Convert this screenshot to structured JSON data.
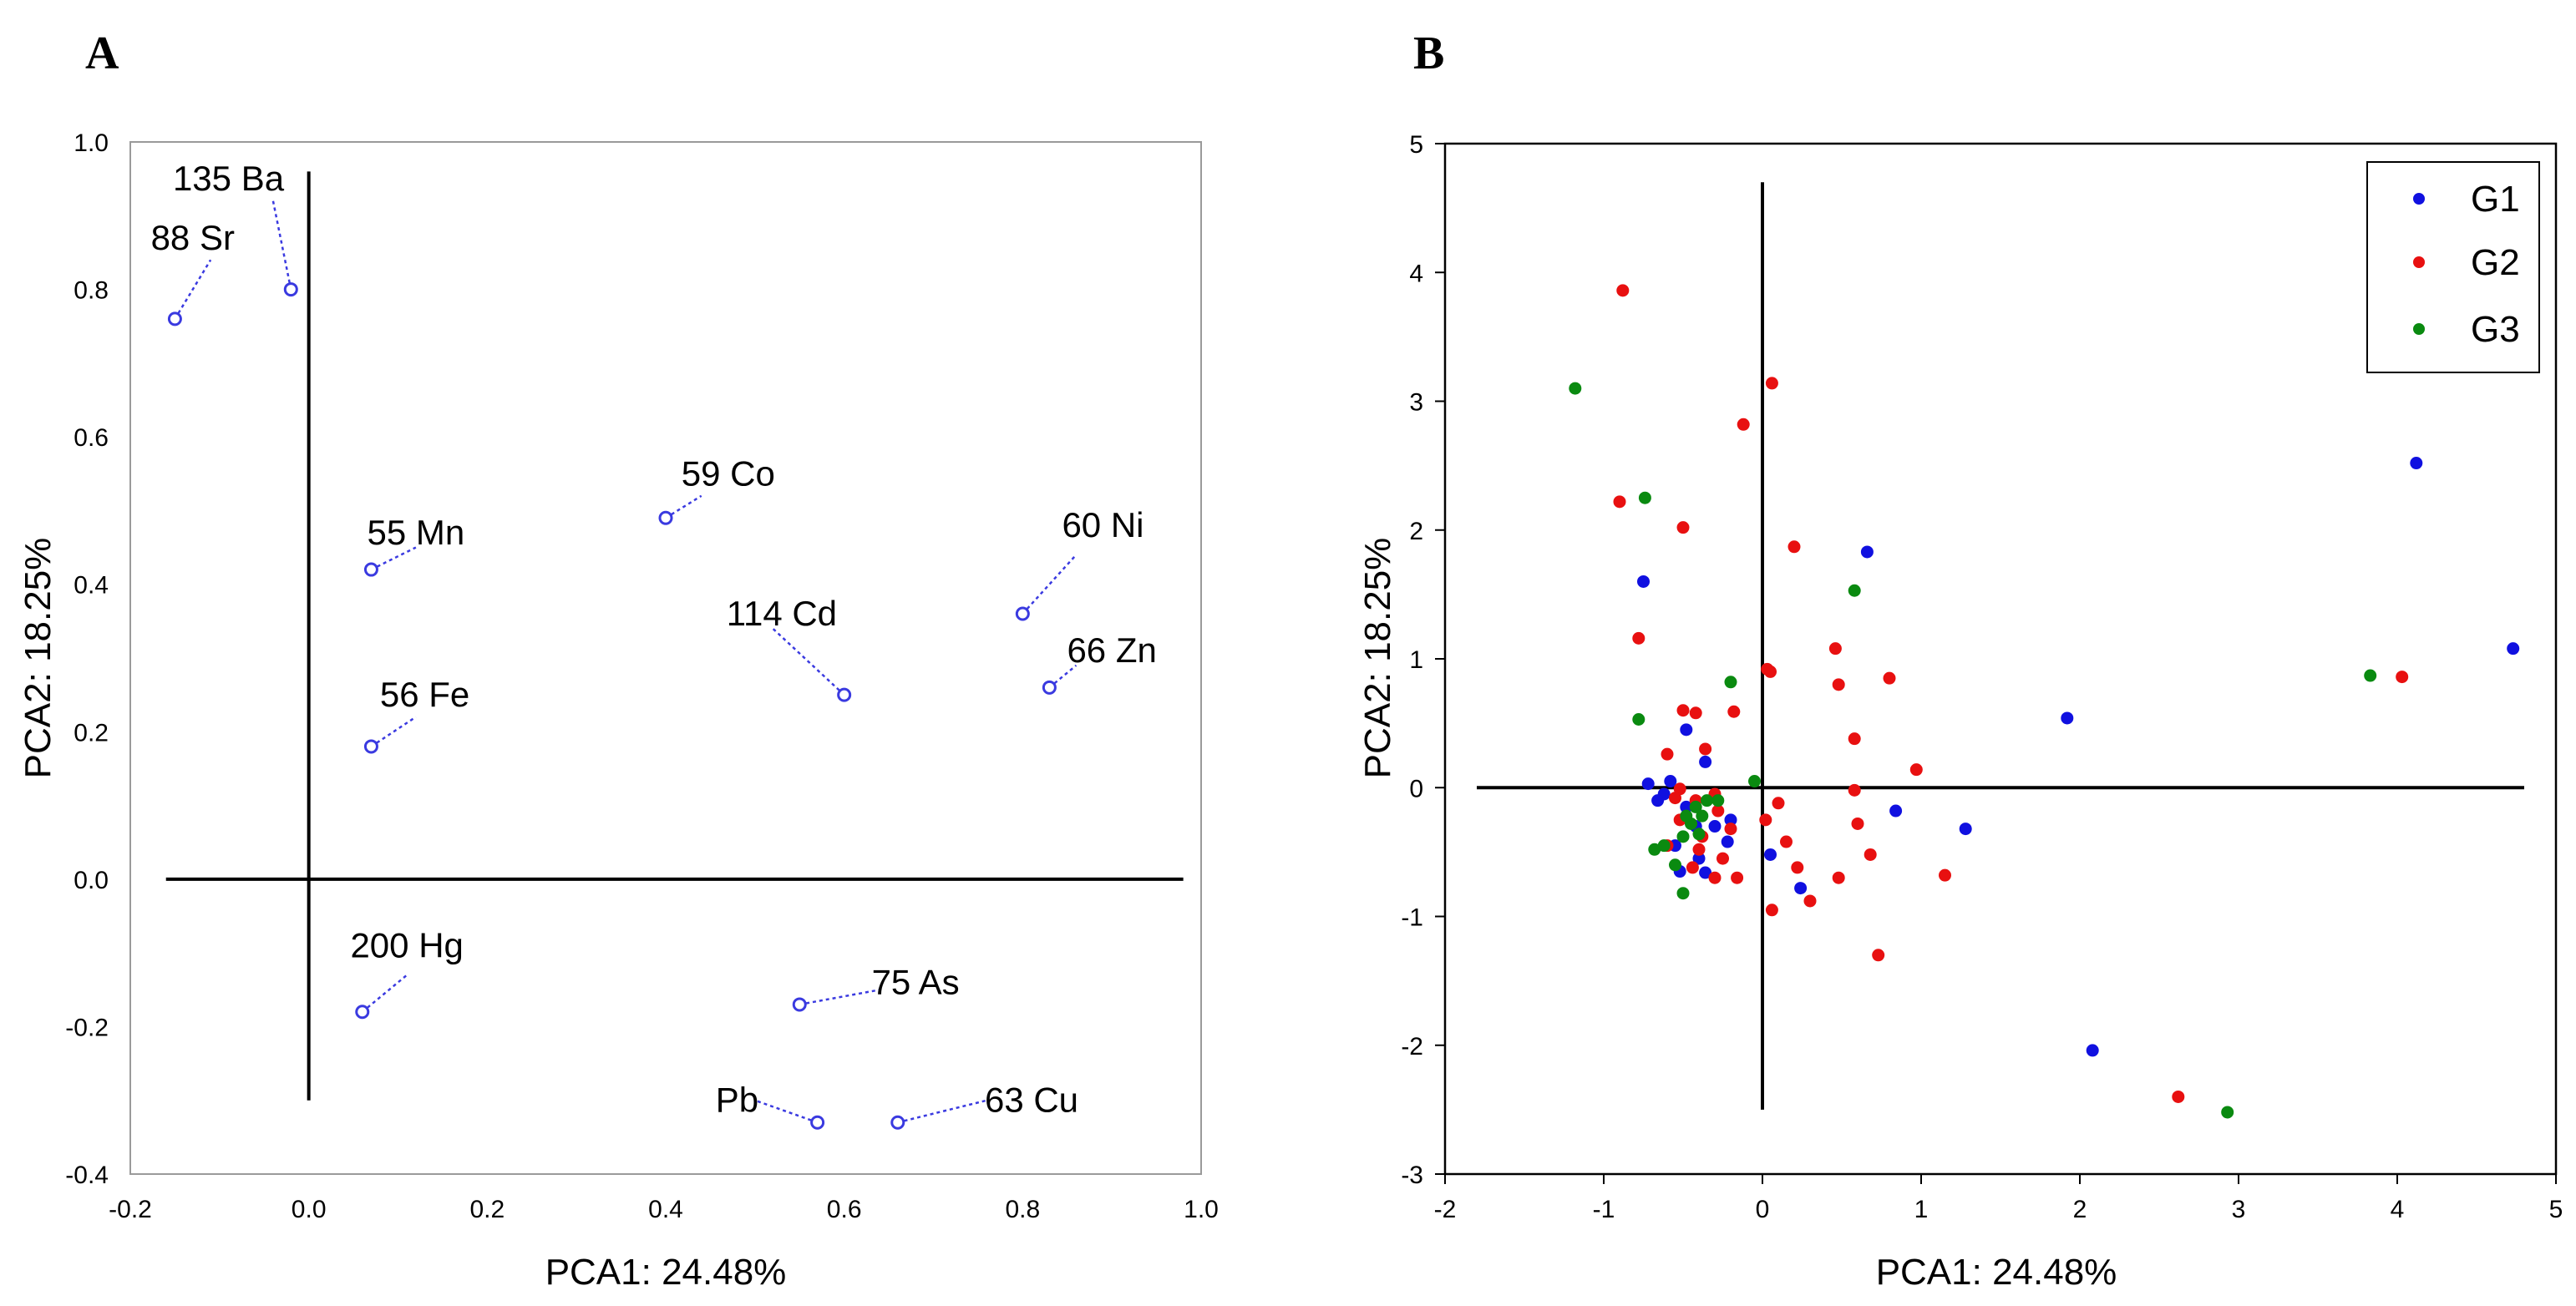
{
  "chart_data": [
    {
      "panel": "A",
      "type": "scatter",
      "title": "",
      "xlabel": "PCA1: 24.48%",
      "ylabel": "PCA2: 18.25%",
      "xlim": [
        -0.2,
        1.0
      ],
      "ylim": [
        -0.4,
        1.0
      ],
      "xticks": [
        "-0.2",
        "0.0",
        "0.2",
        "0.4",
        "0.6",
        "0.8",
        "1.0"
      ],
      "xtick_values": [
        -0.2,
        0.0,
        0.2,
        0.4,
        0.6,
        0.8,
        1.0
      ],
      "yticks": [
        "1.0",
        "0.8",
        "0.6",
        "0.4",
        "0.2",
        "0.0",
        "-0.2",
        "-0.4"
      ],
      "ytick_values": [
        1.0,
        0.8,
        0.6,
        0.4,
        0.2,
        0.0,
        -0.2,
        -0.4
      ],
      "point_color": "#3a3ae0",
      "points": [
        {
          "label": "135  Ba",
          "x": -0.02,
          "y": 0.8,
          "label_x": -0.09,
          "label_y": 0.95,
          "leader_x": -0.04,
          "leader_y": 0.92
        },
        {
          "label": "88  Sr",
          "x": -0.15,
          "y": 0.76,
          "label_x": -0.13,
          "label_y": 0.87,
          "leader_x": -0.11,
          "leader_y": 0.84
        },
        {
          "label": "59  Co",
          "x": 0.4,
          "y": 0.49,
          "label_x": 0.47,
          "label_y": 0.55,
          "leader_x": 0.44,
          "leader_y": 0.52
        },
        {
          "label": "55  Mn",
          "x": 0.07,
          "y": 0.42,
          "label_x": 0.12,
          "label_y": 0.47,
          "leader_x": 0.12,
          "leader_y": 0.45
        },
        {
          "label": "60  Ni",
          "x": 0.8,
          "y": 0.36,
          "label_x": 0.89,
          "label_y": 0.48,
          "leader_x": 0.86,
          "leader_y": 0.44
        },
        {
          "label": "114  Cd",
          "x": 0.6,
          "y": 0.25,
          "label_x": 0.53,
          "label_y": 0.36,
          "leader_x": 0.52,
          "leader_y": 0.34
        },
        {
          "label": "66  Zn",
          "x": 0.83,
          "y": 0.26,
          "label_x": 0.9,
          "label_y": 0.31,
          "leader_x": 0.86,
          "leader_y": 0.29
        },
        {
          "label": "56  Fe",
          "x": 0.07,
          "y": 0.18,
          "label_x": 0.13,
          "label_y": 0.25,
          "leader_x": 0.12,
          "leader_y": 0.22
        },
        {
          "label": "200  Hg",
          "x": 0.06,
          "y": -0.18,
          "label_x": 0.11,
          "label_y": -0.09,
          "leader_x": 0.11,
          "leader_y": -0.13
        },
        {
          "label": "75  As",
          "x": 0.55,
          "y": -0.17,
          "label_x": 0.68,
          "label_y": -0.14,
          "leader_x": 0.64,
          "leader_y": -0.15
        },
        {
          "label": "Pb",
          "x": 0.57,
          "y": -0.33,
          "label_x": 0.48,
          "label_y": -0.3,
          "leader_x": 0.5,
          "leader_y": -0.3
        },
        {
          "label": "63  Cu",
          "x": 0.66,
          "y": -0.33,
          "label_x": 0.81,
          "label_y": -0.3,
          "leader_x": 0.76,
          "leader_y": -0.3
        }
      ]
    },
    {
      "panel": "B",
      "type": "scatter",
      "title": "",
      "xlabel": "PCA1: 24.48%",
      "ylabel": "PCA2: 18.25%",
      "xlim": [
        -2,
        5
      ],
      "ylim": [
        -3,
        5
      ],
      "xticks": [
        "-2",
        "-1",
        "0",
        "1",
        "2",
        "3",
        "4",
        "5"
      ],
      "xtick_values": [
        -2,
        -1,
        0,
        1,
        2,
        3,
        4,
        5
      ],
      "yticks": [
        "5",
        "4",
        "3",
        "2",
        "1",
        "0",
        "-1",
        "-2",
        "-3"
      ],
      "ytick_values": [
        5,
        4,
        3,
        2,
        1,
        0,
        -1,
        -2,
        -3
      ],
      "legend_position": "top-right",
      "series": [
        {
          "name": "G1",
          "color": "#1010e0",
          "points": [
            [
              -0.75,
              1.6
            ],
            [
              0.66,
              1.83
            ],
            [
              4.12,
              2.52
            ],
            [
              4.73,
              1.08
            ],
            [
              1.92,
              0.54
            ],
            [
              0.84,
              -0.18
            ],
            [
              1.28,
              -0.32
            ],
            [
              2.08,
              -2.04
            ],
            [
              -0.72,
              0.03
            ],
            [
              -0.62,
              -0.05
            ],
            [
              -0.48,
              0.45
            ],
            [
              -0.36,
              0.2
            ],
            [
              -0.2,
              -0.25
            ],
            [
              -0.48,
              -0.15
            ],
            [
              -0.55,
              -0.45
            ],
            [
              -0.4,
              -0.55
            ],
            [
              -0.3,
              -0.3
            ],
            [
              -0.22,
              -0.42
            ],
            [
              0.05,
              -0.52
            ],
            [
              0.24,
              -0.78
            ],
            [
              -0.52,
              -0.65
            ],
            [
              -0.42,
              -0.3
            ],
            [
              -0.66,
              -0.1
            ],
            [
              -0.36,
              -0.66
            ],
            [
              -0.58,
              0.05
            ]
          ]
        },
        {
          "name": "G2",
          "color": "#e81010",
          "points": [
            [
              -0.88,
              3.86
            ],
            [
              0.06,
              3.14
            ],
            [
              -0.12,
              2.82
            ],
            [
              -0.9,
              2.22
            ],
            [
              -0.5,
              2.02
            ],
            [
              0.2,
              1.87
            ],
            [
              -0.78,
              1.16
            ],
            [
              0.46,
              1.08
            ],
            [
              0.03,
              0.92
            ],
            [
              0.05,
              0.9
            ],
            [
              0.8,
              0.85
            ],
            [
              0.48,
              0.8
            ],
            [
              4.03,
              0.86
            ],
            [
              -0.5,
              0.6
            ],
            [
              -0.18,
              0.59
            ],
            [
              -0.42,
              0.58
            ],
            [
              0.58,
              0.38
            ],
            [
              -0.6,
              0.26
            ],
            [
              -0.36,
              0.3
            ],
            [
              0.97,
              0.14
            ],
            [
              0.58,
              -0.02
            ],
            [
              0.1,
              -0.12
            ],
            [
              0.6,
              -0.28
            ],
            [
              -0.52,
              -0.01
            ],
            [
              -0.28,
              -0.18
            ],
            [
              -0.42,
              -0.1
            ],
            [
              -0.3,
              -0.05
            ],
            [
              0.02,
              -0.25
            ],
            [
              0.15,
              -0.42
            ],
            [
              0.68,
              -0.52
            ],
            [
              1.15,
              -0.68
            ],
            [
              0.48,
              -0.7
            ],
            [
              0.22,
              -0.62
            ],
            [
              -0.52,
              -0.25
            ],
            [
              -0.38,
              -0.38
            ],
            [
              -0.25,
              -0.55
            ],
            [
              -0.16,
              -0.7
            ],
            [
              -0.3,
              -0.7
            ],
            [
              -0.44,
              -0.62
            ],
            [
              -0.6,
              -0.45
            ],
            [
              0.3,
              -0.88
            ],
            [
              0.06,
              -0.95
            ],
            [
              0.73,
              -1.3
            ],
            [
              2.62,
              -2.4
            ],
            [
              -0.55,
              -0.08
            ],
            [
              -0.4,
              -0.48
            ],
            [
              -0.2,
              -0.32
            ]
          ]
        },
        {
          "name": "G3",
          "color": "#0a8a10",
          "points": [
            [
              -1.18,
              3.1
            ],
            [
              -0.74,
              2.25
            ],
            [
              0.58,
              1.53
            ],
            [
              3.83,
              0.87
            ],
            [
              -0.78,
              0.53
            ],
            [
              -0.2,
              0.82
            ],
            [
              -0.05,
              0.05
            ],
            [
              -0.62,
              -0.45
            ],
            [
              -0.5,
              -0.82
            ],
            [
              -0.45,
              -0.28
            ],
            [
              -0.35,
              -0.1
            ],
            [
              -0.48,
              -0.22
            ],
            [
              -0.38,
              -0.22
            ],
            [
              -0.55,
              -0.6
            ],
            [
              -0.4,
              -0.36
            ],
            [
              -0.68,
              -0.48
            ],
            [
              -0.28,
              -0.1
            ],
            [
              2.93,
              -2.52
            ],
            [
              -0.5,
              -0.38
            ],
            [
              -0.42,
              -0.15
            ]
          ]
        }
      ]
    }
  ]
}
